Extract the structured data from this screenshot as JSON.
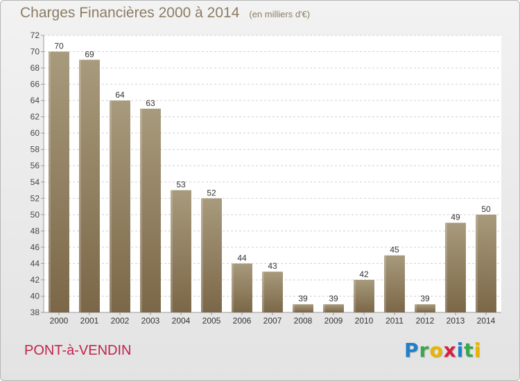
{
  "header": {
    "title": "Charges Financières 2000 à 2014",
    "unit": "(en milliers d'€)"
  },
  "footer": {
    "city": "PONT-à-VENDIN",
    "logo": {
      "letters": [
        "P",
        "r",
        "o",
        "x",
        "i",
        "t",
        "i"
      ]
    }
  },
  "colors": {
    "bar_light": "#a89a7c",
    "bar_dark": "#7b6748",
    "title": "#8c7c62",
    "city": "#c0234b",
    "logo": [
      "#1f7fc8",
      "#3aa84a",
      "#e9b400",
      "#d4213f",
      "#1f7fc8",
      "#3aa84a",
      "#e9b400"
    ]
  },
  "chart_data": {
    "type": "bar",
    "title": "Charges Financières 2000 à 2014",
    "subtitle": "(en milliers d'€)",
    "xlabel": "",
    "ylabel": "",
    "categories": [
      "2000",
      "2001",
      "2002",
      "2003",
      "2004",
      "2005",
      "2006",
      "2007",
      "2008",
      "2009",
      "2010",
      "2011",
      "2012",
      "2013",
      "2014"
    ],
    "values": [
      70,
      69,
      64,
      63,
      53,
      52,
      44,
      43,
      39,
      39,
      42,
      45,
      39,
      49,
      50
    ],
    "data_labels": [
      "70",
      "69",
      "64",
      "63",
      "53",
      "52",
      "44",
      "43",
      "39",
      "39",
      "42",
      "45",
      "39",
      "49",
      "50"
    ],
    "ylim": [
      38,
      72
    ],
    "yticks": [
      38,
      40,
      42,
      44,
      46,
      48,
      50,
      52,
      54,
      56,
      58,
      60,
      62,
      64,
      66,
      68,
      70,
      72
    ],
    "grid": "horizontal dashed",
    "legend": "none"
  }
}
